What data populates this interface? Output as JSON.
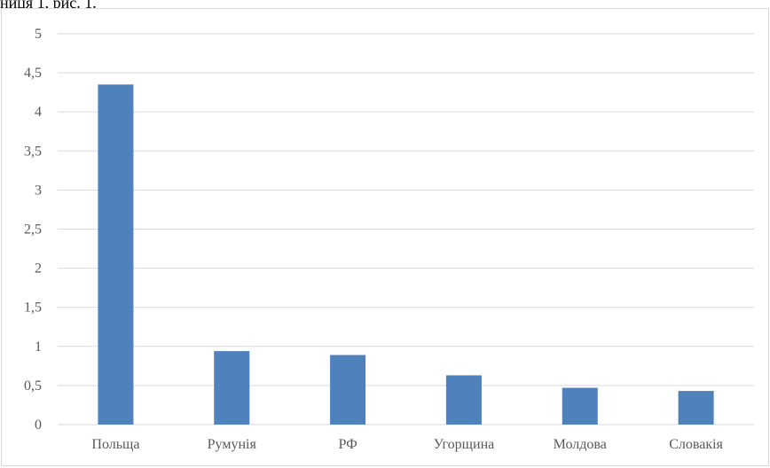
{
  "caption": "ниця 1, рис. 1.",
  "chart_data": {
    "type": "bar",
    "categories": [
      "Польща",
      "Румунія",
      "РФ",
      "Угорщина",
      "Молдова",
      "Словакія"
    ],
    "values": [
      4.35,
      0.94,
      0.89,
      0.63,
      0.47,
      0.43
    ],
    "yticks": [
      "0",
      "0,5",
      "1",
      "1,5",
      "2",
      "2,5",
      "3",
      "3,5",
      "4",
      "4,5",
      "5"
    ],
    "ylim": [
      0,
      5
    ],
    "grid": true,
    "colors": {
      "bar": "#4f81bd",
      "grid": "#d9d9d9"
    }
  }
}
